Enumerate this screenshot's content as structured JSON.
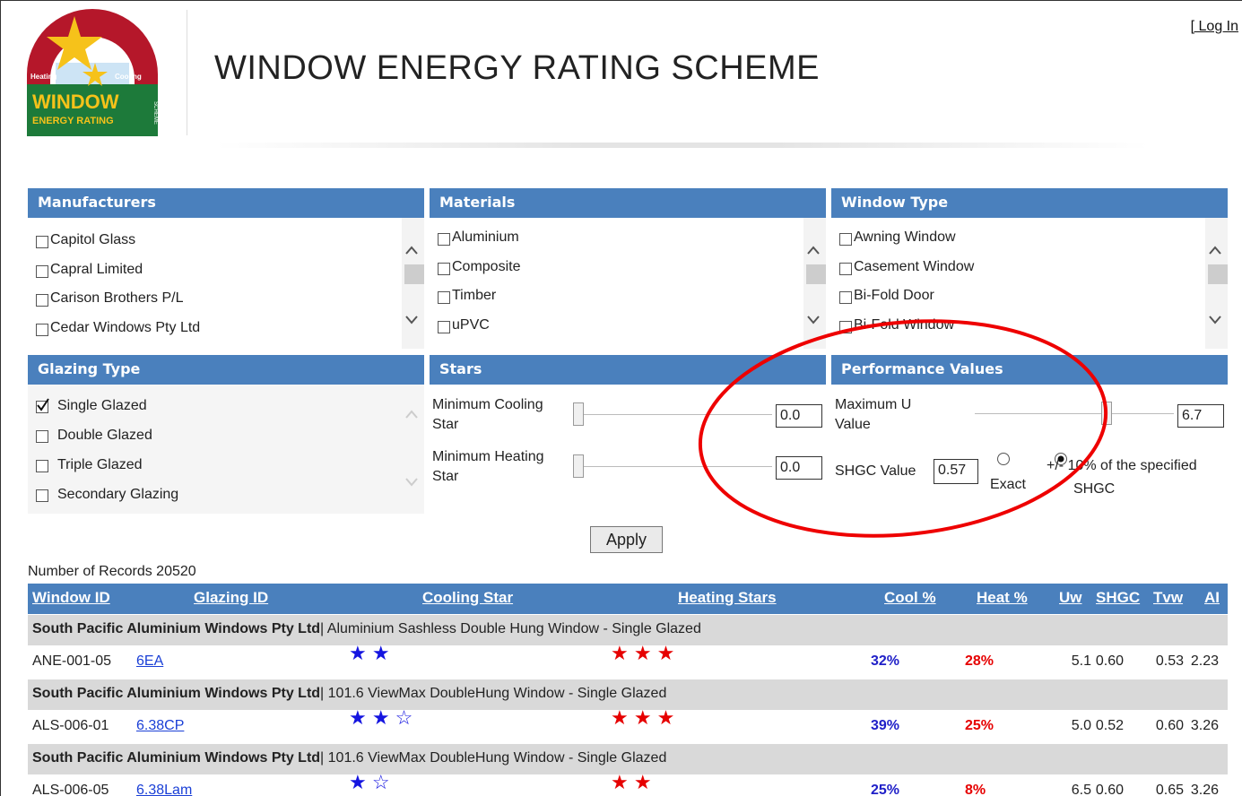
{
  "header": {
    "login": "[ Log In",
    "title": "WINDOW ENERGY RATING SCHEME",
    "logo": {
      "heating": "Heating",
      "cooling": "Cooling",
      "window": "WINDOW",
      "sub": "ENERGY RATING",
      "scheme": "SCHEME"
    }
  },
  "filters": {
    "manufacturers": {
      "title": "Manufacturers",
      "options": [
        {
          "label": "Capitol Glass",
          "checked": false
        },
        {
          "label": "Capral Limited",
          "checked": false
        },
        {
          "label": "Carison Brothers P/L",
          "checked": false
        },
        {
          "label": "Cedar Windows Pty Ltd",
          "checked": false
        }
      ]
    },
    "materials": {
      "title": "Materials",
      "options": [
        {
          "label": "Aluminium",
          "checked": false
        },
        {
          "label": "Composite",
          "checked": false
        },
        {
          "label": "Timber",
          "checked": false
        },
        {
          "label": "uPVC",
          "checked": false
        }
      ]
    },
    "window_type": {
      "title": "Window Type",
      "options": [
        {
          "label": "Awning Window",
          "checked": false
        },
        {
          "label": "Casement Window",
          "checked": false
        },
        {
          "label": "Bi-Fold Door",
          "checked": false
        },
        {
          "label": "Bi-Fold Window",
          "checked": false
        }
      ]
    },
    "glazing_type": {
      "title": "Glazing Type",
      "options": [
        {
          "label": "Single Glazed",
          "checked": true
        },
        {
          "label": "Double Glazed",
          "checked": false
        },
        {
          "label": "Triple Glazed",
          "checked": false
        },
        {
          "label": "Secondary Glazing",
          "checked": false
        }
      ]
    },
    "stars": {
      "title": "Stars",
      "min_cooling": {
        "label": "Minimum Cooling Star",
        "value": "0.0"
      },
      "min_heating": {
        "label": "Minimum Heating Star",
        "value": "0.0"
      }
    },
    "performance": {
      "title": "Performance Values",
      "max_u": {
        "label": "Maximum U Value",
        "value": "6.7"
      },
      "shgc": {
        "label": "SHGC Value",
        "value": "0.57"
      },
      "mode_exact": {
        "label": "Exact",
        "selected": false
      },
      "mode_range": {
        "label": "+/- 10% of the specified SHGC",
        "selected": true
      }
    }
  },
  "apply": "Apply",
  "records": "Number of Records 20520",
  "table": {
    "columns": [
      "Window ID",
      "Glazing ID",
      "Cooling Star",
      "Heating Stars",
      "Cool %",
      "Heat %",
      "Uw",
      "SHGC",
      "Tvw",
      "AI"
    ],
    "groups": [
      {
        "heading": "South Pacific Aluminium Windows Pty Ltd",
        "description": "| Aluminium Sashless Double Hung Window - Single Glazed",
        "row": [
          "ANE-001-05",
          "6EA",
          "★ ★",
          "★ ★ ★",
          "32%",
          "28%",
          "5.1",
          "0.60",
          "0.53",
          "2.23"
        ]
      },
      {
        "heading": "South Pacific Aluminium Windows Pty Ltd",
        "description": "| 101.6 ViewMax DoubleHung Window - Single Glazed",
        "row": [
          "ALS-006-01",
          "6.38CP",
          "★ ★ ☆",
          "★ ★ ★",
          "39%",
          "25%",
          "5.0",
          "0.52",
          "0.60",
          "3.26"
        ]
      },
      {
        "heading": "South Pacific Aluminium Windows Pty Ltd",
        "description": "| 101.6 ViewMax DoubleHung Window - Single Glazed",
        "row": [
          "ALS-006-05",
          "6.38Lam",
          "★ ☆",
          "★ ★",
          "25%",
          "8%",
          "6.5",
          "0.60",
          "0.65",
          "3.26"
        ]
      }
    ]
  }
}
